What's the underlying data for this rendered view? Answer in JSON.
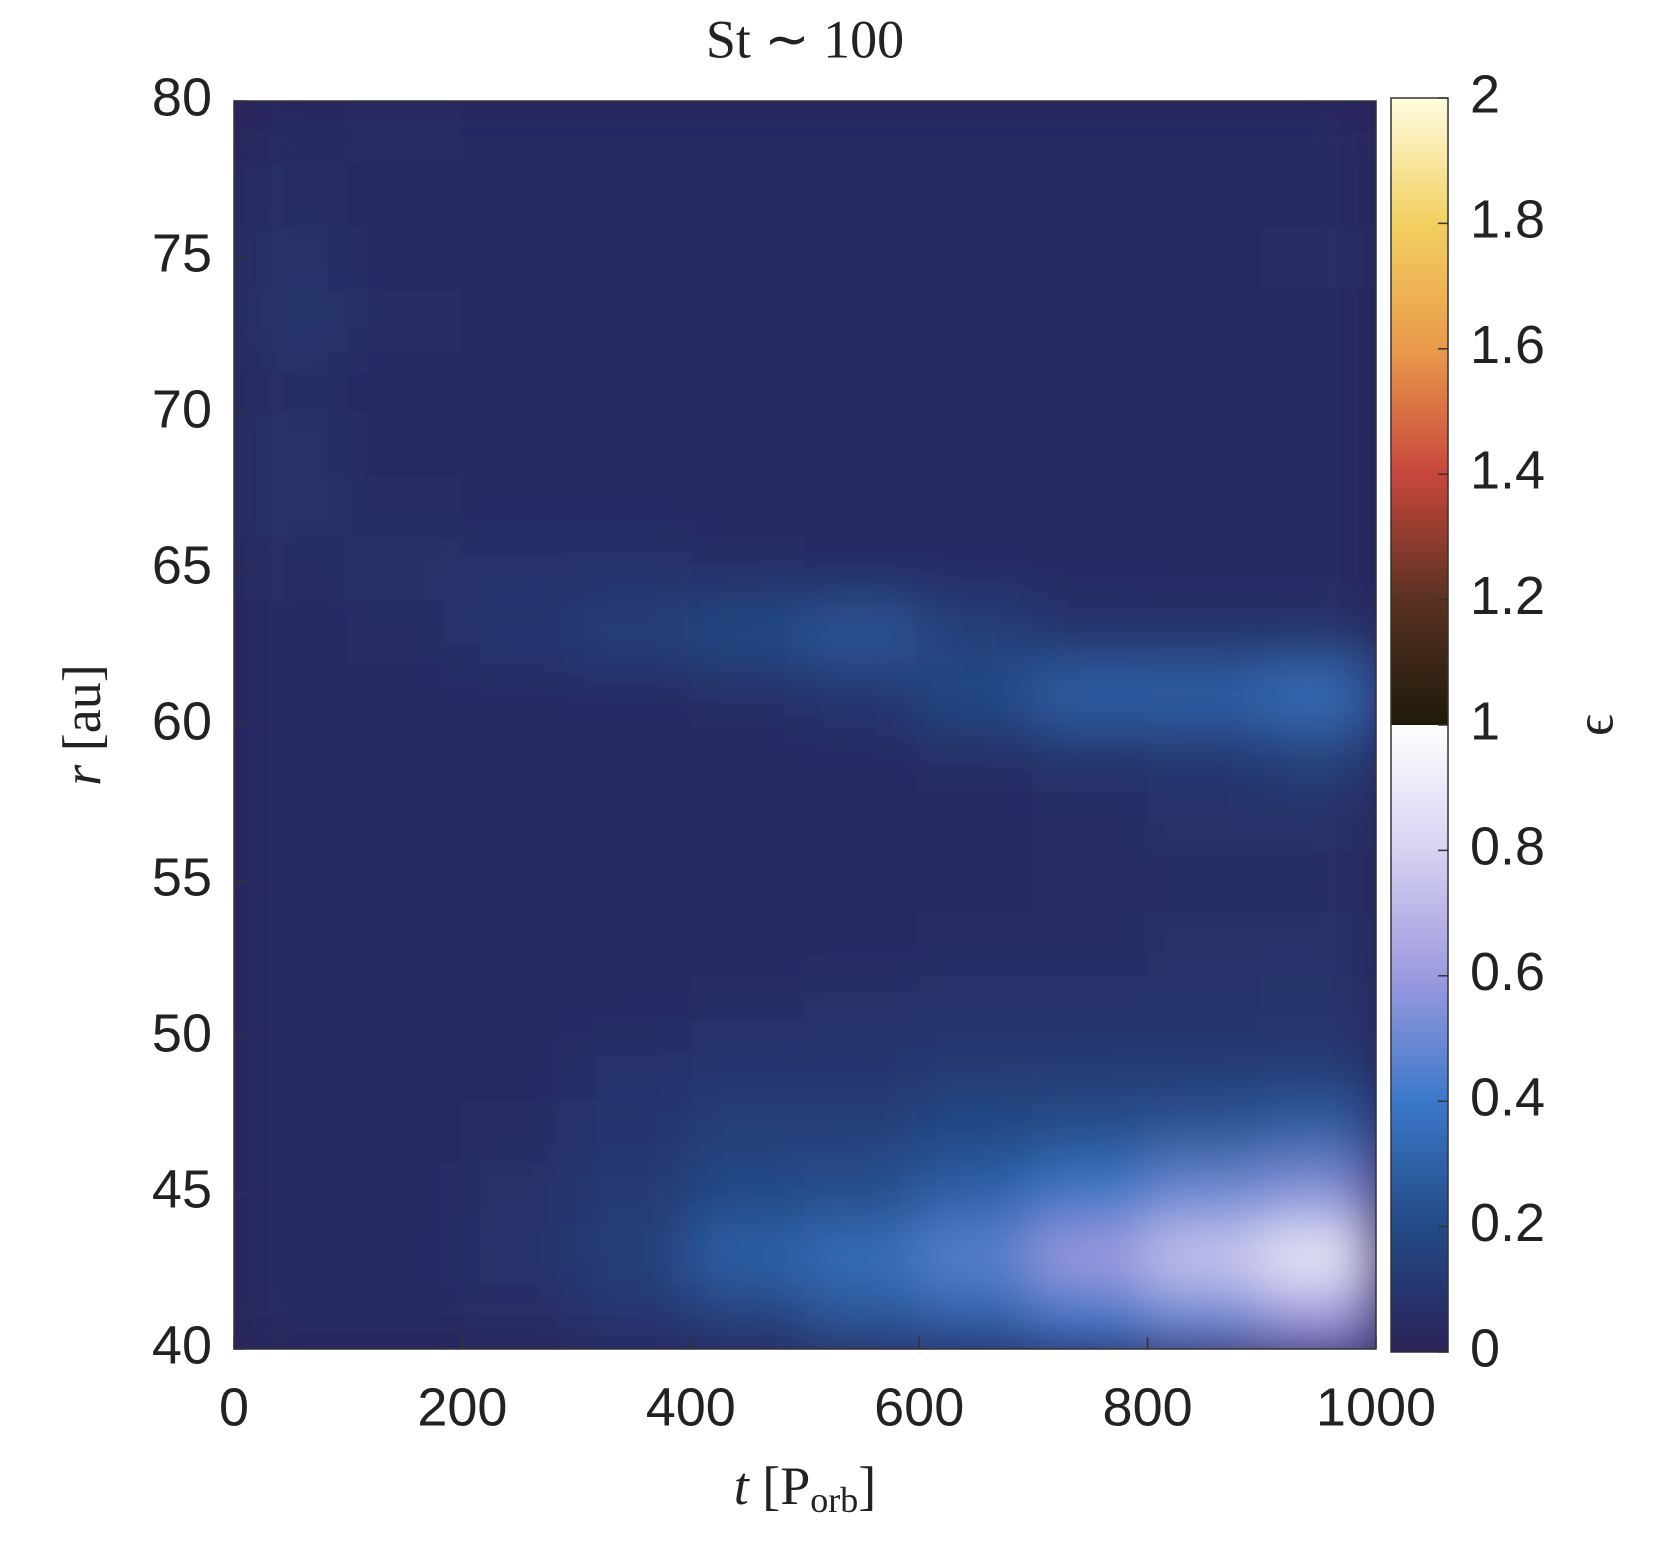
{
  "chart_data": {
    "type": "heatmap",
    "title": "St ∼ 100",
    "xlabel": [
      "t",
      "[P",
      "orb",
      "]"
    ],
    "ylabel": [
      "r",
      "[au]"
    ],
    "colorbar_label": "ϵ",
    "xbins": [
      0,
      100,
      200,
      300,
      400,
      500,
      600,
      700,
      800,
      900,
      1000
    ],
    "ybins": [
      40,
      42,
      44,
      46,
      48,
      50,
      52,
      54,
      56,
      58,
      60,
      62,
      64,
      66,
      68,
      70,
      72,
      74,
      76,
      78,
      80
    ],
    "z": [
      [
        0.05,
        0.05,
        0.06,
        0.1,
        0.15,
        0.25,
        0.3,
        0.4,
        0.5,
        0.6
      ],
      [
        0.05,
        0.05,
        0.08,
        0.15,
        0.3,
        0.35,
        0.45,
        0.6,
        0.75,
        0.9
      ],
      [
        0.05,
        0.05,
        0.07,
        0.12,
        0.2,
        0.22,
        0.3,
        0.4,
        0.5,
        0.55
      ],
      [
        0.05,
        0.05,
        0.06,
        0.1,
        0.15,
        0.15,
        0.2,
        0.22,
        0.25,
        0.3
      ],
      [
        0.05,
        0.05,
        0.05,
        0.08,
        0.1,
        0.1,
        0.12,
        0.12,
        0.12,
        0.12
      ],
      [
        0.05,
        0.05,
        0.05,
        0.05,
        0.06,
        0.07,
        0.08,
        0.08,
        0.08,
        0.09
      ],
      [
        0.05,
        0.05,
        0.05,
        0.05,
        0.05,
        0.05,
        0.06,
        0.06,
        0.07,
        0.07
      ],
      [
        0.05,
        0.05,
        0.05,
        0.05,
        0.05,
        0.05,
        0.05,
        0.06,
        0.06,
        0.06
      ],
      [
        0.05,
        0.05,
        0.05,
        0.05,
        0.05,
        0.05,
        0.05,
        0.06,
        0.07,
        0.07
      ],
      [
        0.05,
        0.05,
        0.05,
        0.05,
        0.05,
        0.05,
        0.06,
        0.08,
        0.1,
        0.15
      ],
      [
        0.05,
        0.05,
        0.05,
        0.05,
        0.06,
        0.1,
        0.2,
        0.3,
        0.3,
        0.35
      ],
      [
        0.05,
        0.06,
        0.1,
        0.15,
        0.2,
        0.25,
        0.15,
        0.08,
        0.07,
        0.07
      ],
      [
        0.06,
        0.07,
        0.08,
        0.08,
        0.06,
        0.05,
        0.05,
        0.05,
        0.05,
        0.05
      ],
      [
        0.07,
        0.06,
        0.05,
        0.05,
        0.05,
        0.05,
        0.05,
        0.05,
        0.05,
        0.05
      ],
      [
        0.07,
        0.05,
        0.05,
        0.05,
        0.05,
        0.05,
        0.05,
        0.05,
        0.05,
        0.05
      ],
      [
        0.06,
        0.05,
        0.05,
        0.05,
        0.05,
        0.05,
        0.05,
        0.05,
        0.05,
        0.05
      ],
      [
        0.09,
        0.06,
        0.05,
        0.05,
        0.05,
        0.05,
        0.05,
        0.05,
        0.05,
        0.05
      ],
      [
        0.07,
        0.05,
        0.05,
        0.05,
        0.05,
        0.05,
        0.05,
        0.05,
        0.05,
        0.06
      ],
      [
        0.06,
        0.05,
        0.05,
        0.05,
        0.05,
        0.05,
        0.05,
        0.05,
        0.05,
        0.05
      ],
      [
        0.05,
        0.06,
        0.05,
        0.05,
        0.05,
        0.05,
        0.05,
        0.05,
        0.05,
        0.05
      ]
    ],
    "xlim": [
      0,
      1000
    ],
    "xticks": [
      0,
      200,
      400,
      600,
      800,
      1000
    ],
    "ylim": [
      40,
      80
    ],
    "yticks": [
      40,
      45,
      50,
      55,
      60,
      65,
      70,
      75,
      80
    ],
    "clim": [
      0,
      2
    ],
    "cticks": [
      0,
      0.2,
      0.4,
      0.6,
      0.8,
      1,
      1.2,
      1.4,
      1.6,
      1.8,
      2
    ]
  }
}
